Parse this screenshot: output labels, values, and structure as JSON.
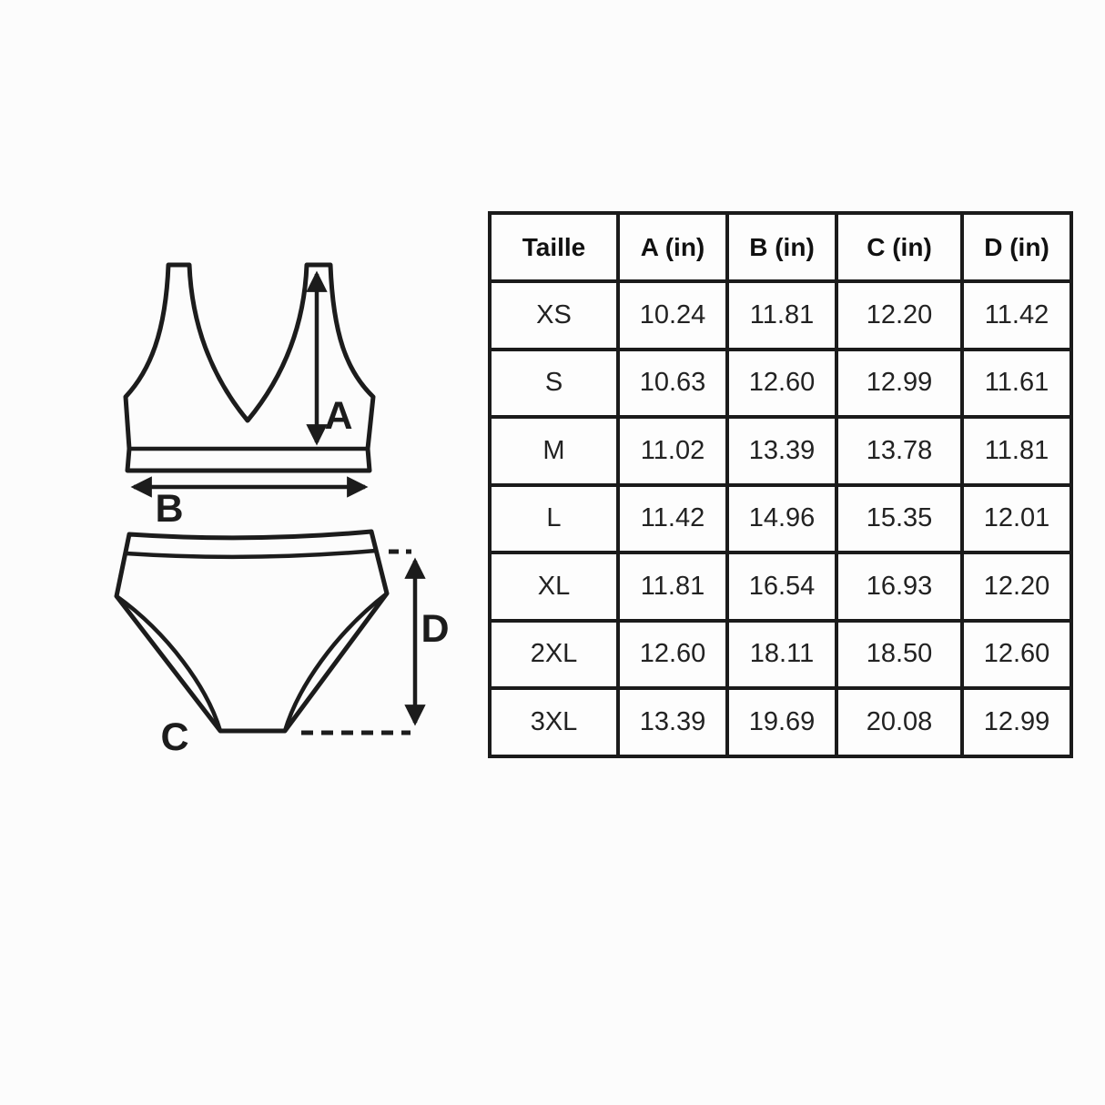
{
  "diagram": {
    "labels": {
      "a": "A",
      "b": "B",
      "c": "C",
      "d": "D"
    }
  },
  "table": {
    "columns": [
      "Taille",
      "A (in)",
      "B (in)",
      "C (in)",
      "D (in)"
    ],
    "rows": [
      {
        "size": "XS",
        "values": [
          "10.24",
          "11.81",
          "12.20",
          "11.42"
        ]
      },
      {
        "size": "S",
        "values": [
          "10.63",
          "12.60",
          "12.99",
          "11.61"
        ]
      },
      {
        "size": "M",
        "values": [
          "11.02",
          "13.39",
          "13.78",
          "11.81"
        ]
      },
      {
        "size": "L",
        "values": [
          "11.42",
          "14.96",
          "15.35",
          "12.01"
        ]
      },
      {
        "size": "XL",
        "values": [
          "11.81",
          "16.54",
          "16.93",
          "12.20"
        ]
      },
      {
        "size": "2XL",
        "values": [
          "12.60",
          "18.11",
          "18.50",
          "12.60"
        ]
      },
      {
        "size": "3XL",
        "values": [
          "13.39",
          "19.69",
          "20.08",
          "12.99"
        ]
      }
    ]
  },
  "colors": {
    "line": "#1c1c1c",
    "background": "#fcfcfc",
    "text": "#1f1f1f"
  }
}
